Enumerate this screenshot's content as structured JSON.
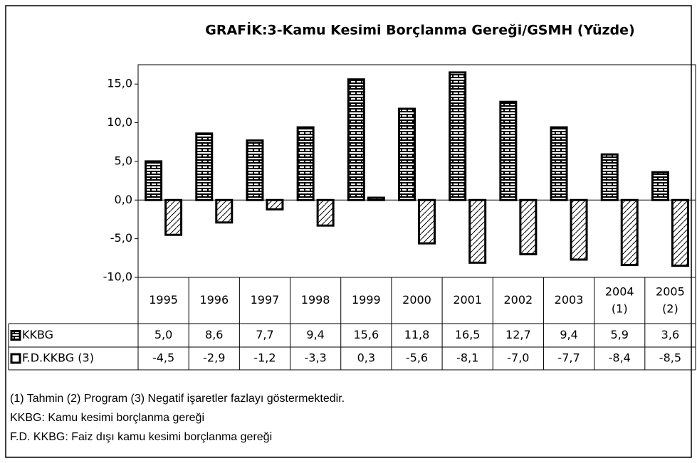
{
  "chart_data": {
    "type": "bar",
    "title": "GRAFİK:3-Kamu Kesimi Borçlanma Gereği/GSMH (Yüzde)",
    "categories": [
      "1995",
      "1996",
      "1997",
      "1998",
      "1999",
      "2000",
      "2001",
      "2002",
      "2003",
      "2004\n(1)",
      "2005\n(2)"
    ],
    "series": [
      {
        "name": "KKBG",
        "color": "#000000",
        "values": [
          5.0,
          8.6,
          7.7,
          9.4,
          15.6,
          11.8,
          16.5,
          12.7,
          9.4,
          5.9,
          3.6
        ],
        "value_labels": [
          "5,0",
          "8,6",
          "7,7",
          "9,4",
          "15,6",
          "11,8",
          "16,5",
          "12,7",
          "9,4",
          "5,9",
          "3,6"
        ]
      },
      {
        "name": "F.D.KKBG (3)",
        "color": "#000000",
        "values": [
          -4.5,
          -2.9,
          -1.2,
          -3.3,
          0.3,
          -5.6,
          -8.1,
          -7.0,
          -7.7,
          -8.4,
          -8.5
        ],
        "value_labels": [
          "-4,5",
          "-2,9",
          "-1,2",
          "-3,3",
          "0,3",
          "-5,6",
          "-8,1",
          "-7,0",
          "-7,7",
          "-8,4",
          "-8,5"
        ]
      }
    ],
    "ylim": [
      -10,
      17.5
    ],
    "yticks": [
      {
        "value": -10,
        "label": "-10,0"
      },
      {
        "value": -5,
        "label": "-5,0"
      },
      {
        "value": 0,
        "label": "0,0"
      },
      {
        "value": 5,
        "label": "5,0"
      },
      {
        "value": 10,
        "label": "10,0"
      },
      {
        "value": 15,
        "label": "15,0"
      }
    ],
    "notes": [
      "(1) Tahmin  (2) Program  (3) Negatif işaretler fazlayı göstermektedir.",
      "KKBG: Kamu kesimi borçlanma gereği",
      "F.D. KKBG: Faiz dışı kamu kesimi borçlanma gereği"
    ]
  }
}
